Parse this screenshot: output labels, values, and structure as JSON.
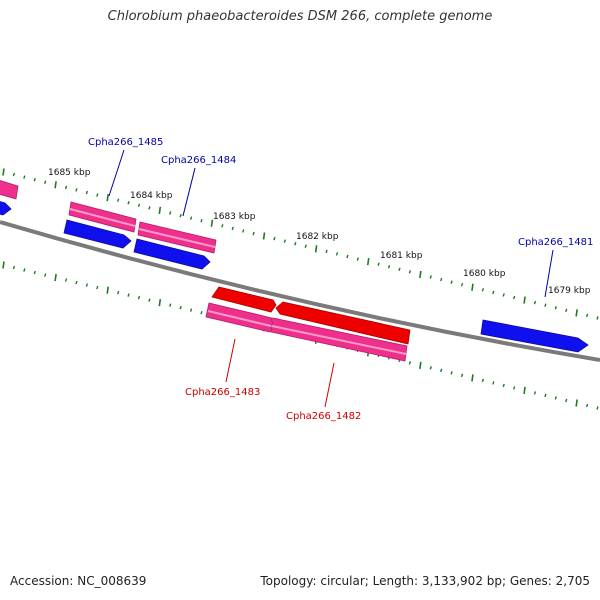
{
  "title": "Chlorobium phaeobacteroides DSM 266, complete genome",
  "footer": {
    "accession": "Accession: NC_008639",
    "summary": "Topology: circular; Length: 3,133,902 bp; Genes: 2,705"
  },
  "colors": {
    "backbone": "#808080",
    "tick": "#1e7a1e",
    "gene_blue": "#1010ee",
    "gene_pink": "#ee2f8c",
    "gene_red": "#ee0000",
    "label_blue": "#0000aa",
    "label_red": "#cc0000"
  },
  "kbp_ticks": [
    "1685 kbp",
    "1684 kbp",
    "1683 kbp",
    "1682 kbp",
    "1681 kbp",
    "1680 kbp",
    "1679 kbp"
  ],
  "gene_labels": {
    "cpha266_1485": "Cpha266_1485",
    "cpha266_1484": "Cpha266_1484",
    "cpha266_1481": "Cpha266_1481",
    "cpha266_1483": "Cpha266_1483",
    "cpha266_1482": "Cpha266_1482"
  }
}
